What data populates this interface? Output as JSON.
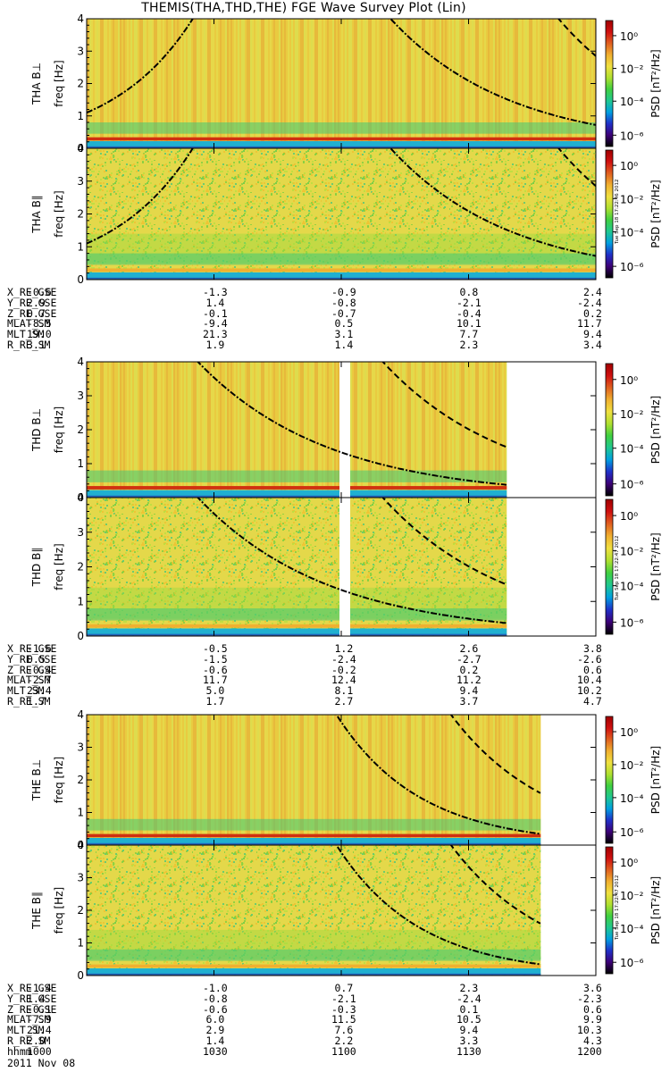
{
  "title": "THEMIS(THA,THD,THE) FGE Wave Survey Plot (Lin)",
  "date": "2011 Nov 08",
  "colorbar": {
    "label": "PSD [nT²/Hz]",
    "tick_labels": [
      "10⁰",
      "10⁻²",
      "10⁻⁴",
      "10⁻⁶"
    ],
    "stamp_THA": "Tue Sep 18 17:22:46 2012",
    "stamp_THD": "Tue Sep 18 17:22:47 2012",
    "stamp_THE": "Tue Sep 18 17:22:47 2012"
  },
  "colors": {
    "background": "#e4d84a",
    "colormap": [
      "#000000",
      "#3d0077",
      "#2030c8",
      "#00a0e0",
      "#20c890",
      "#40d040",
      "#b0e030",
      "#f0e040",
      "#f0b030",
      "#e06020",
      "#d01010",
      "#a00000"
    ]
  },
  "chart_data": [
    {
      "type": "heatmap",
      "probe": "THA",
      "panels": [
        {
          "ylabel": "THA B⊥",
          "yunit": "freq [Hz]",
          "has_gap": false,
          "data_end": 1200
        },
        {
          "ylabel": "THA B∥",
          "yunit": "freq [Hz]",
          "has_gap": false,
          "data_end": 1200
        }
      ],
      "ylim": [
        0,
        4
      ],
      "yticks": [
        "0",
        "1",
        "2",
        "3",
        "4"
      ],
      "ephemeris": {
        "labels": [
          "X_RE_GSE",
          "Y_RE_GSE",
          "Z_RE_GSE",
          "MLAT_SM",
          "MLT_SM",
          "R_RE_SM"
        ],
        "values": [
          [
            "-0.6",
            "-1.3",
            "-0.9",
            "0.8",
            "2.4"
          ],
          [
            "2.9",
            "1.4",
            "-0.8",
            "-2.1",
            "-2.4"
          ],
          [
            "0.7",
            "-0.1",
            "-0.7",
            "-0.4",
            "0.2"
          ],
          [
            "-8.5",
            "-9.4",
            "0.5",
            "10.1",
            "11.7"
          ],
          [
            "19.0",
            "21.3",
            "3.1",
            "7.7",
            "9.4"
          ],
          [
            "3.1",
            "1.9",
            "1.4",
            "2.3",
            "3.4"
          ]
        ]
      }
    },
    {
      "type": "heatmap",
      "probe": "THD",
      "panels": [
        {
          "ylabel": "THD B⊥",
          "yunit": "freq [Hz]",
          "has_gap": true,
          "data_end": 1139
        },
        {
          "ylabel": "THD B∥",
          "yunit": "freq [Hz]",
          "has_gap": true,
          "data_end": 1139
        }
      ],
      "ylim": [
        0,
        4
      ],
      "yticks": [
        "0",
        "1",
        "2",
        "3",
        "4"
      ],
      "ephemeris": {
        "labels": [
          "X_RE_GSE",
          "Y_RE_GSE",
          "Z_RE_GSE",
          "MLAT_SM",
          "MLT_SM",
          "R_RE_SM"
        ],
        "values": [
          [
            "-1.6",
            "-0.5",
            "1.2",
            "2.6",
            "3.8"
          ],
          [
            "0.5",
            "-1.5",
            "-2.4",
            "-2.7",
            "-2.6"
          ],
          [
            "-0.4",
            "-0.6",
            "-0.2",
            "0.2",
            "0.6"
          ],
          [
            "-2.7",
            "11.7",
            "12.4",
            "11.2",
            "10.4"
          ],
          [
            "23.4",
            "5.0",
            "8.1",
            "9.4",
            "10.2"
          ],
          [
            "1.7",
            "1.7",
            "2.7",
            "3.7",
            "4.7"
          ]
        ]
      }
    },
    {
      "type": "heatmap",
      "probe": "THE",
      "panels": [
        {
          "ylabel": "THE B⊥",
          "yunit": "freq [Hz]",
          "has_gap": false,
          "data_end": 1147
        },
        {
          "ylabel": "THE B∥",
          "yunit": "freq [Hz]",
          "has_gap": false,
          "data_end": 1147
        }
      ],
      "ylim": [
        0,
        4
      ],
      "yticks": [
        "0",
        "1",
        "2",
        "3",
        "4"
      ],
      "ephemeris": {
        "labels": [
          "X_RE_GSE",
          "Y_RE_GSE",
          "Z_RE_GSE",
          "MLAT_SM",
          "MLT_SM",
          "R_RE_SM",
          "hhmm"
        ],
        "values": [
          [
            "-1.4",
            "-1.0",
            "0.7",
            "2.3",
            "3.6"
          ],
          [
            "1.4",
            "-0.8",
            "-2.1",
            "-2.4",
            "-2.3"
          ],
          [
            "-0.1",
            "-0.6",
            "-0.3",
            "0.1",
            "0.6"
          ],
          [
            "-7.9",
            "6.0",
            "11.5",
            "10.5",
            "9.9"
          ],
          [
            "21.4",
            "2.9",
            "7.6",
            "9.4",
            "10.3"
          ],
          [
            "2.0",
            "1.4",
            "2.2",
            "3.3",
            "4.3"
          ],
          [
            "1000",
            "1030",
            "1100",
            "1130",
            "1200"
          ]
        ]
      }
    }
  ]
}
